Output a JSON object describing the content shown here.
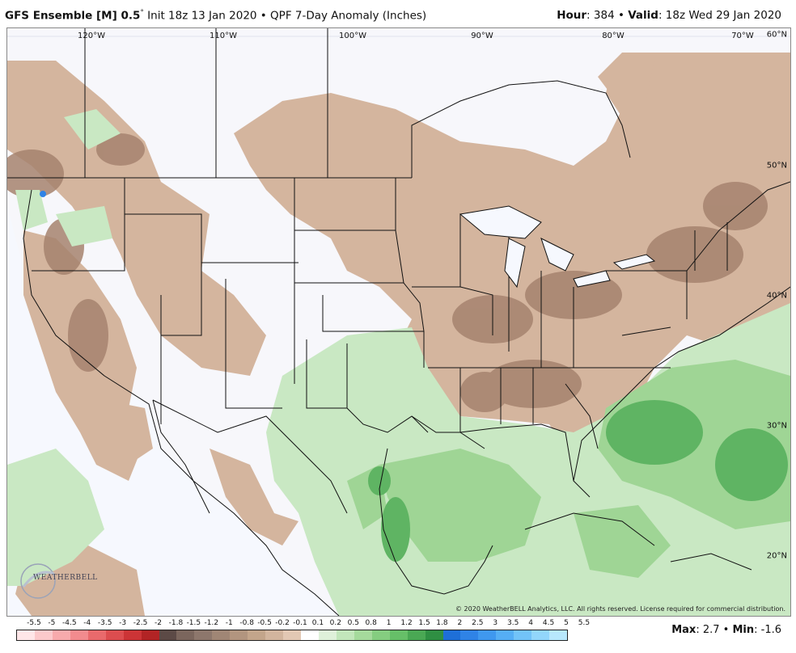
{
  "header": {
    "model": "GFS Ensemble [M] 0.5",
    "degree": "°",
    "init": " Init 18z 13 Jan 2020 • QPF 7-Day Anomaly (Inches)",
    "hour_label": "Hour",
    "hour_value": ": 384 • ",
    "valid_label": "Valid",
    "valid_value": ": 18z Wed 29 Jan 2020"
  },
  "map": {
    "lon_labels": [
      "120°W",
      "110°W",
      "100°W",
      "90°W",
      "80°W",
      "70°W"
    ],
    "lat_labels": [
      "60°N",
      "50°N",
      "40°N",
      "30°N",
      "20°N"
    ],
    "copyright": "© 2020 WeatherBELL Analytics, LLC. All rights reserved. License required for commercial distribution.",
    "logo_text": "WEATHERBELL",
    "colors": {
      "ocean": "#f6f8fe",
      "dry_light": "#d4b59e",
      "dry_mid": "#bf9b85",
      "dry_dark": "#a6836f",
      "wet_light": "#c9e8c3",
      "wet_mid": "#9fd595",
      "wet_dark": "#5fb463",
      "border": "#111111"
    }
  },
  "legend": {
    "labels": [
      "-5.5",
      "-5",
      "-4.5",
      "-4",
      "-3.5",
      "-3",
      "-2.5",
      "-2",
      "-1.8",
      "-1.5",
      "-1.2",
      "-1",
      "-0.8",
      "-0.5",
      "-0.2",
      "-0.1",
      "0.1",
      "0.2",
      "0.5",
      "0.8",
      "1",
      "1.2",
      "1.5",
      "1.8",
      "2",
      "2.5",
      "3",
      "3.5",
      "4",
      "4.5",
      "5",
      "5.5"
    ],
    "colors": [
      "#ffe6e8",
      "#fbc9cb",
      "#f7aaac",
      "#f28b8e",
      "#e96a6c",
      "#dc4d4f",
      "#cc3436",
      "#b22425",
      "#5c4a46",
      "#7b665d",
      "#8d776c",
      "#a08675",
      "#b2957f",
      "#c3a58b",
      "#d2b59e",
      "#e2c8b4",
      "#ffffff",
      "#dff1da",
      "#c2e6bb",
      "#a5da9c",
      "#85cd80",
      "#66bf68",
      "#4aa854",
      "#2f8f43",
      "#1e6fd8",
      "#2f83e6",
      "#3f98ef",
      "#55aef5",
      "#72c3f8",
      "#92d6fb",
      "#b8e8fd"
    ]
  },
  "stats": {
    "max_label": "Max",
    "max_value": ": 2.7 • ",
    "min_label": "Min",
    "min_value": ": -1.6"
  }
}
